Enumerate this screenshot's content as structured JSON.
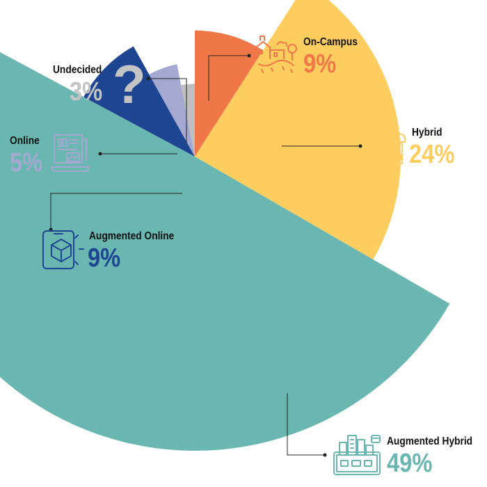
{
  "chart_data": {
    "type": "pie",
    "title": "",
    "categories": [
      "On-Campus",
      "Hybrid",
      "Augmented Hybrid",
      "Augmented Online",
      "Online",
      "Undecided"
    ],
    "values": [
      9,
      24,
      49,
      9,
      5,
      3
    ],
    "percent_labels": [
      "9%",
      "24%",
      "49%",
      "9%",
      "5%",
      "3%"
    ],
    "colors": [
      "#f07848",
      "#fdcd5f",
      "#69b7b0",
      "#1d4591",
      "#a5a8d0",
      "#bfbfbf"
    ],
    "icons": [
      "campus-icon",
      "cloud-devices-icon",
      "smart-city-icon",
      "phone-cube-icon",
      "article-screen-icon",
      "question-mark-icon"
    ],
    "decoration": "?"
  }
}
